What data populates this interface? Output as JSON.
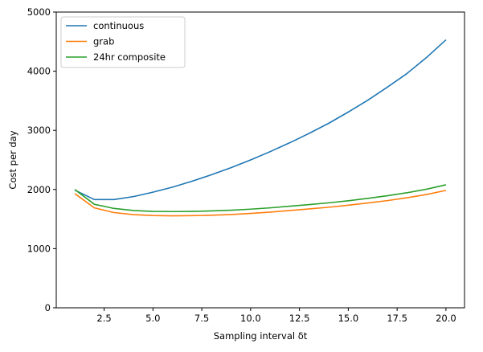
{
  "chart_data": {
    "type": "line",
    "title": "",
    "xlabel": "Sampling interval δt",
    "ylabel": "Cost per day",
    "xlim": [
      0.05,
      20.95
    ],
    "ylim": [
      0,
      5000
    ],
    "xticks": [
      2.5,
      5.0,
      7.5,
      10.0,
      12.5,
      15.0,
      17.5,
      20.0
    ],
    "xtick_labels": [
      "2.5",
      "5.0",
      "7.5",
      "10.0",
      "12.5",
      "15.0",
      "17.5",
      "20.0"
    ],
    "yticks": [
      0,
      1000,
      2000,
      3000,
      4000,
      5000
    ],
    "ytick_labels": [
      "0",
      "1000",
      "2000",
      "3000",
      "4000",
      "5000"
    ],
    "grid": false,
    "legend_position": "upper-left",
    "x": [
      1,
      2,
      3,
      4,
      5,
      6,
      7,
      8,
      9,
      10,
      11,
      12,
      13,
      14,
      15,
      16,
      17,
      18,
      19,
      20
    ],
    "series": [
      {
        "name": "continuous",
        "color": "#1f77b4",
        "values": [
          1990,
          1830,
          1830,
          1880,
          1955,
          2040,
          2140,
          2250,
          2370,
          2500,
          2640,
          2790,
          2950,
          3120,
          3310,
          3510,
          3730,
          3960,
          4230,
          4530
        ]
      },
      {
        "name": "grab",
        "color": "#ff7f0e",
        "values": [
          1930,
          1690,
          1610,
          1575,
          1560,
          1555,
          1558,
          1565,
          1577,
          1595,
          1618,
          1645,
          1672,
          1700,
          1735,
          1772,
          1812,
          1860,
          1915,
          1985
        ]
      },
      {
        "name": "24hr composite",
        "color": "#2ca02c",
        "values": [
          2000,
          1750,
          1680,
          1645,
          1630,
          1627,
          1630,
          1638,
          1650,
          1668,
          1690,
          1718,
          1745,
          1775,
          1810,
          1850,
          1895,
          1945,
          2005,
          2080
        ]
      }
    ]
  }
}
